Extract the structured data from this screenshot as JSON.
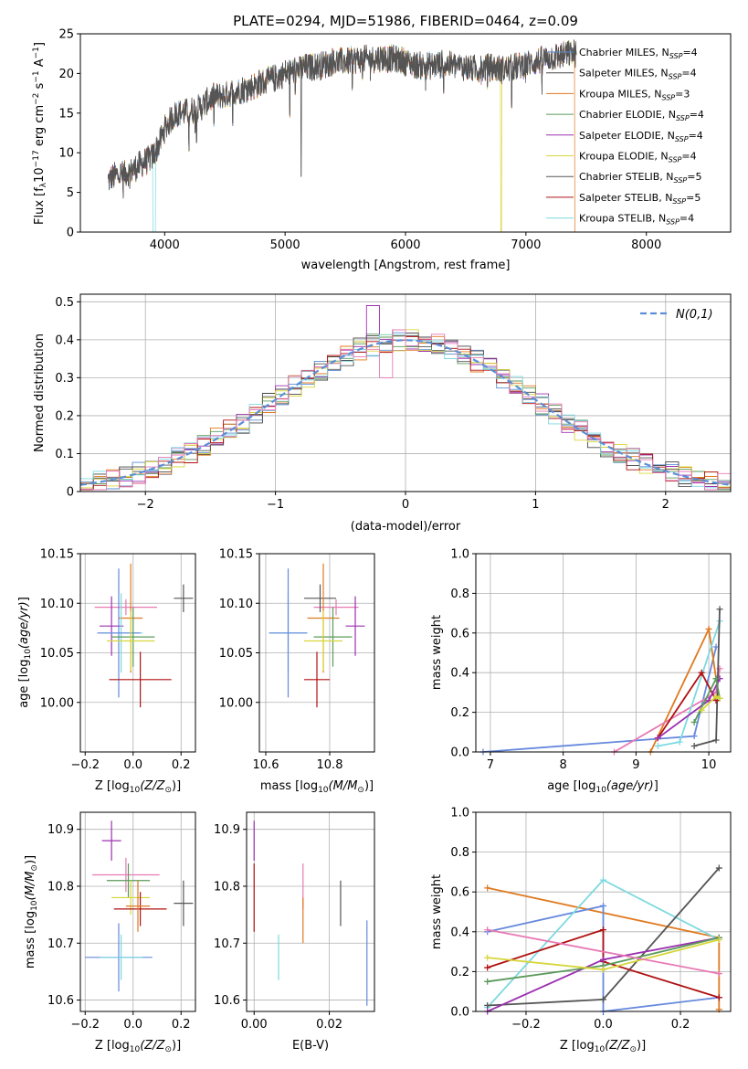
{
  "title": "PLATE=0294, MJD=51986, FIBERID=0464, z=0.09",
  "colors": {
    "C_MILES": "#5a8ed1",
    "S_MILES": "#444444",
    "K_MILES": "#e07a20",
    "C_ELODIE": "#5a9a5a",
    "S_ELODIE": "#9b30b0",
    "K_ELODIE": "#d6d63a",
    "C_STELIB": "#555555",
    "S_STELIB": "#b01010",
    "K_STELIB": "#7dd9e0",
    "pink": "#e879b4",
    "blue": "#6688dd",
    "normal": "#5b8ed8"
  },
  "chart_data": [
    {
      "id": "spectrum",
      "type": "line",
      "xlabel": "wavelength [Angstrom, rest frame]",
      "ylabel": "Flux [f_λ10^-17 erg cm^-2 s^-1 A^-1]",
      "xlim": [
        3300,
        8700
      ],
      "ylim": [
        0,
        25
      ],
      "xticks": [
        4000,
        5000,
        6000,
        7000,
        8000
      ],
      "yticks": [
        0,
        5,
        10,
        15,
        20,
        25
      ],
      "legend_position": "top-right",
      "continuum": {
        "x": [
          3530,
          3600,
          3700,
          3800,
          3900,
          3950,
          4000,
          4050,
          4100,
          4200,
          4300,
          4400,
          4500,
          4600,
          4700,
          4800,
          4900,
          5000,
          5100,
          5200,
          5300,
          5400,
          5500,
          5600,
          5700,
          5800,
          5900,
          6000,
          6100,
          6200,
          6300,
          6400,
          6500,
          6600,
          6700,
          6800,
          6900,
          7000,
          7100,
          7200,
          7300,
          7400
        ],
        "y": [
          6.5,
          7.2,
          7.5,
          8.5,
          9.5,
          11.0,
          13.0,
          14.2,
          15.0,
          15.2,
          15.8,
          17.0,
          17.2,
          17.8,
          18.2,
          18.8,
          19.3,
          20.0,
          20.5,
          20.8,
          21.0,
          21.5,
          21.5,
          21.8,
          21.8,
          22.0,
          21.8,
          21.5,
          21.0,
          21.0,
          21.2,
          21.0,
          20.8,
          20.5,
          20.8,
          20.5,
          20.8,
          21.2,
          21.5,
          22.0,
          22.3,
          22.5
        ]
      },
      "series": [
        {
          "name": "Chabrier MILES, N_SSP=4",
          "key": "C_MILES"
        },
        {
          "name": "Salpeter MILES, N_SSP=4",
          "key": "S_MILES"
        },
        {
          "name": "Kroupa MILES, N_SSP=3",
          "key": "K_MILES"
        },
        {
          "name": "Chabrier ELODIE, N_SSP=4",
          "key": "C_ELODIE"
        },
        {
          "name": "Salpeter ELODIE, N_SSP=4",
          "key": "S_ELODIE"
        },
        {
          "name": "Kroupa ELODIE, N_SSP=4",
          "key": "K_ELODIE"
        },
        {
          "name": "Chabrier STELIB, N_SSP=5",
          "key": "C_STELIB"
        },
        {
          "name": "Salpeter STELIB, N_SSP=5",
          "key": "S_STELIB"
        },
        {
          "name": "Kroupa STELIB, N_SSP=4",
          "key": "K_STELIB"
        }
      ]
    },
    {
      "id": "residuals",
      "type": "line",
      "xlabel": "(data-model)/error",
      "ylabel": "Normed distribution",
      "xlim": [
        -2.5,
        2.5
      ],
      "ylim": [
        0,
        0.52
      ],
      "xticks": [
        -2,
        -1,
        0,
        1,
        2
      ],
      "yticks": [
        0.0,
        0.1,
        0.2,
        0.3,
        0.4,
        0.5
      ],
      "grid": true,
      "legend_position": "top-right",
      "normal_label": "N(0,1)",
      "bin_width": 0.1
    },
    {
      "id": "age_vs_Z",
      "type": "scatter",
      "xlabel": "Z [log10(Z/Z☉)]",
      "ylabel": "age [log10(age/yr)]",
      "xlim": [
        -0.22,
        0.26
      ],
      "ylim": [
        9.95,
        10.15
      ],
      "xticks": [
        -0.2,
        0.0,
        0.2
      ],
      "xticklabels": [
        "−0.2",
        "0.0",
        "0.2"
      ],
      "yticks": [
        10.0,
        10.05,
        10.1,
        10.15
      ],
      "yticklabels": [
        "10.00",
        "10.05",
        "10.10",
        "10.15"
      ],
      "grid": true,
      "points": [
        {
          "key": "pink",
          "x": -0.03,
          "y": 10.096,
          "xe": 0.13,
          "ye": 0.008
        },
        {
          "key": "C_STELIB",
          "x": 0.21,
          "y": 10.105,
          "xe": 0.04,
          "ye": 0.014
        },
        {
          "key": "K_MILES",
          "x": -0.01,
          "y": 10.085,
          "xe": 0.05,
          "ye": 0.055
        },
        {
          "key": "S_ELODIE",
          "x": -0.09,
          "y": 10.077,
          "xe": 0.05,
          "ye": 0.03
        },
        {
          "key": "K_STELIB",
          "x": -0.05,
          "y": 10.07,
          "xe": 0.09,
          "ye": 0.04
        },
        {
          "key": "blue",
          "x": -0.06,
          "y": 10.07,
          "xe": 0.09,
          "ye": 0.065
        },
        {
          "key": "C_ELODIE",
          "x": 0.0,
          "y": 10.066,
          "xe": 0.09,
          "ye": 0.03
        },
        {
          "key": "K_ELODIE",
          "x": -0.01,
          "y": 10.062,
          "xe": 0.1,
          "ye": 0.03
        },
        {
          "key": "S_STELIB",
          "x": 0.03,
          "y": 10.023,
          "xe": 0.13,
          "ye": 0.028
        }
      ]
    },
    {
      "id": "age_vs_mass",
      "type": "scatter",
      "xlabel": "mass [log10(M/M☉)]",
      "ylabel": "",
      "xlim": [
        10.58,
        10.94
      ],
      "ylim": [
        9.95,
        10.15
      ],
      "xticks": [
        10.6,
        10.8
      ],
      "xticklabels": [
        "10.6",
        "10.8"
      ],
      "yticks": [
        10.0,
        10.05,
        10.1,
        10.15
      ],
      "yticklabels": [
        "10.00",
        "10.05",
        "10.10",
        "10.15"
      ],
      "grid": true,
      "points": [
        {
          "key": "pink",
          "x": 10.82,
          "y": 10.096,
          "xe": 0.07,
          "ye": 0.008
        },
        {
          "key": "C_STELIB",
          "x": 10.77,
          "y": 10.105,
          "xe": 0.05,
          "ye": 0.014
        },
        {
          "key": "K_MILES",
          "x": 10.78,
          "y": 10.085,
          "xe": 0.05,
          "ye": 0.055
        },
        {
          "key": "S_ELODIE",
          "x": 10.88,
          "y": 10.077,
          "xe": 0.03,
          "ye": 0.03
        },
        {
          "key": "K_STELIB",
          "x": 10.67,
          "y": 10.07,
          "xe": 0.06,
          "ye": 0.04
        },
        {
          "key": "blue",
          "x": 10.67,
          "y": 10.07,
          "xe": 0.06,
          "ye": 0.065
        },
        {
          "key": "C_ELODIE",
          "x": 10.81,
          "y": 10.066,
          "xe": 0.06,
          "ye": 0.03
        },
        {
          "key": "K_ELODIE",
          "x": 10.78,
          "y": 10.062,
          "xe": 0.06,
          "ye": 0.03
        },
        {
          "key": "S_STELIB",
          "x": 10.76,
          "y": 10.023,
          "xe": 0.04,
          "ye": 0.028
        }
      ]
    },
    {
      "id": "weight_vs_age",
      "type": "line",
      "xlabel": "age [log10(age/yr)]",
      "ylabel": "mass weight",
      "xlim": [
        6.8,
        10.3
      ],
      "ylim": [
        0,
        1.0
      ],
      "xticks": [
        7,
        8,
        9,
        10
      ],
      "xticklabels": [
        "7",
        "8",
        "9",
        "10"
      ],
      "yticks": [
        0.0,
        0.2,
        0.4,
        0.6,
        0.8,
        1.0
      ],
      "yticklabels": [
        "0.0",
        "0.2",
        "0.4",
        "0.6",
        "0.8",
        "1.0"
      ],
      "grid": true,
      "lines": [
        {
          "key": "blue",
          "x": [
            6.9,
            9.8,
            10.1
          ],
          "y": [
            0.0,
            0.08,
            0.53
          ]
        },
        {
          "key": "K_MILES",
          "x": [
            9.2,
            10.0,
            10.1
          ],
          "y": [
            0.0,
            0.62,
            0.37
          ]
        },
        {
          "key": "pink",
          "x": [
            8.7,
            10.1,
            10.15
          ],
          "y": [
            0.0,
            0.3,
            0.42
          ]
        },
        {
          "key": "K_STELIB",
          "x": [
            9.3,
            9.6,
            10.15
          ],
          "y": [
            0.03,
            0.05,
            0.66
          ]
        },
        {
          "key": "C_STELIB",
          "x": [
            9.8,
            10.1,
            10.15
          ],
          "y": [
            0.03,
            0.06,
            0.72
          ]
        },
        {
          "key": "S_STELIB",
          "x": [
            9.3,
            9.9,
            10.1
          ],
          "y": [
            0.07,
            0.4,
            0.26
          ]
        },
        {
          "key": "S_ELODIE",
          "x": [
            9.3,
            10.0,
            10.15
          ],
          "y": [
            0.07,
            0.26,
            0.37
          ]
        },
        {
          "key": "C_ELODIE",
          "x": [
            9.8,
            10.1,
            10.15
          ],
          "y": [
            0.15,
            0.37,
            0.27
          ]
        },
        {
          "key": "K_ELODIE",
          "x": [
            9.9,
            10.1,
            10.15
          ],
          "y": [
            0.21,
            0.28,
            0.27
          ]
        }
      ]
    },
    {
      "id": "mass_vs_Z",
      "type": "scatter",
      "xlabel": "Z [log10(Z/Z☉)]",
      "ylabel": "mass [log10(M/M☉)]",
      "xlim": [
        -0.22,
        0.26
      ],
      "ylim": [
        10.58,
        10.93
      ],
      "xticks": [
        -0.2,
        0.0,
        0.2
      ],
      "xticklabels": [
        "−0.2",
        "0.0",
        "0.2"
      ],
      "yticks": [
        10.6,
        10.7,
        10.8,
        10.9
      ],
      "yticklabels": [
        "10.6",
        "10.7",
        "10.8",
        "10.9"
      ],
      "grid": true,
      "points": [
        {
          "key": "S_ELODIE",
          "x": -0.09,
          "y": 10.88,
          "xe": 0.04,
          "ye": 0.035
        },
        {
          "key": "pink",
          "x": -0.03,
          "y": 10.82,
          "xe": 0.14,
          "ye": 0.03
        },
        {
          "key": "C_ELODIE",
          "x": -0.02,
          "y": 10.81,
          "xe": 0.09,
          "ye": 0.03
        },
        {
          "key": "K_ELODIE",
          "x": -0.01,
          "y": 10.78,
          "xe": 0.08,
          "ye": 0.03
        },
        {
          "key": "C_STELIB",
          "x": 0.21,
          "y": 10.77,
          "xe": 0.04,
          "ye": 0.04
        },
        {
          "key": "S_STELIB",
          "x": 0.03,
          "y": 10.76,
          "xe": 0.11,
          "ye": 0.03
        },
        {
          "key": "K_MILES",
          "x": 0.02,
          "y": 10.765,
          "xe": 0.05,
          "ye": 0.045
        },
        {
          "key": "blue",
          "x": -0.06,
          "y": 10.675,
          "xe": 0.14,
          "ye": 0.06
        },
        {
          "key": "K_STELIB",
          "x": -0.05,
          "y": 10.675,
          "xe": 0.09,
          "ye": 0.04
        }
      ]
    },
    {
      "id": "mass_vs_ebv",
      "type": "scatter",
      "xlabel": "E(B-V)",
      "ylabel": "",
      "xlim": [
        -0.002,
        0.032
      ],
      "ylim": [
        10.58,
        10.93
      ],
      "xticks": [
        0.0,
        0.02
      ],
      "xticklabels": [
        "0.00",
        "0.02"
      ],
      "yticks": [
        10.6,
        10.7,
        10.8,
        10.9
      ],
      "yticklabels": [
        "10.6",
        "10.7",
        "10.8",
        "10.9"
      ],
      "grid": true,
      "points": [
        {
          "key": "S_ELODIE",
          "x": 0.0,
          "y": 10.88,
          "xe": 0,
          "ye": 0.035
        },
        {
          "key": "S_STELIB",
          "x": 0.0,
          "y": 10.78,
          "xe": 0,
          "ye": 0.06
        },
        {
          "key": "pink",
          "x": 0.013,
          "y": 10.8,
          "xe": 0,
          "ye": 0.04
        },
        {
          "key": "K_MILES",
          "x": 0.013,
          "y": 10.74,
          "xe": 0,
          "ye": 0.04
        },
        {
          "key": "C_STELIB",
          "x": 0.023,
          "y": 10.77,
          "xe": 0,
          "ye": 0.04
        },
        {
          "key": "K_STELIB",
          "x": 0.0065,
          "y": 10.675,
          "xe": 0,
          "ye": 0.04
        },
        {
          "key": "blue",
          "x": 0.03,
          "y": 10.665,
          "xe": 0,
          "ye": 0.075
        }
      ]
    },
    {
      "id": "weight_vs_Z",
      "type": "line",
      "xlabel": "Z [log10(Z/Z☉)]",
      "ylabel": "mass weight",
      "xlim": [
        -0.33,
        0.33
      ],
      "ylim": [
        0,
        1.0
      ],
      "xticks": [
        -0.2,
        0.0,
        0.2
      ],
      "xticklabels": [
        "−0.2",
        "0.0",
        "0.2"
      ],
      "yticks": [
        0.0,
        0.2,
        0.4,
        0.6,
        0.8,
        1.0
      ],
      "yticklabels": [
        "0.0",
        "0.2",
        "0.4",
        "0.6",
        "0.8",
        "1.0"
      ],
      "grid": true,
      "lines": [
        {
          "key": "K_MILES",
          "x": [
            -0.3,
            0.3,
            0.3
          ],
          "y": [
            0.62,
            0.37,
            0.01
          ]
        },
        {
          "key": "blue",
          "x": [
            -0.3,
            0.0,
            0.0,
            0.3
          ],
          "y": [
            0.4,
            0.53,
            0.0,
            0.07
          ]
        },
        {
          "key": "K_STELIB",
          "x": [
            -0.3,
            0.0,
            0.3
          ],
          "y": [
            0.02,
            0.66,
            0.36
          ]
        },
        {
          "key": "C_STELIB",
          "x": [
            -0.3,
            0.0,
            0.3
          ],
          "y": [
            0.03,
            0.06,
            0.72
          ]
        },
        {
          "key": "S_STELIB",
          "x": [
            -0.3,
            0.0,
            0.0,
            0.3
          ],
          "y": [
            0.22,
            0.41,
            0.25,
            0.07
          ]
        },
        {
          "key": "S_ELODIE",
          "x": [
            -0.3,
            0.0,
            0.3
          ],
          "y": [
            0.0,
            0.26,
            0.37
          ]
        },
        {
          "key": "C_ELODIE",
          "x": [
            -0.3,
            0.0,
            0.3
          ],
          "y": [
            0.15,
            0.23,
            0.37
          ]
        },
        {
          "key": "K_ELODIE",
          "x": [
            -0.3,
            0.0,
            0.3
          ],
          "y": [
            0.27,
            0.21,
            0.36
          ]
        },
        {
          "key": "pink",
          "x": [
            -0.3,
            0.3
          ],
          "y": [
            0.41,
            0.19
          ]
        }
      ]
    }
  ]
}
